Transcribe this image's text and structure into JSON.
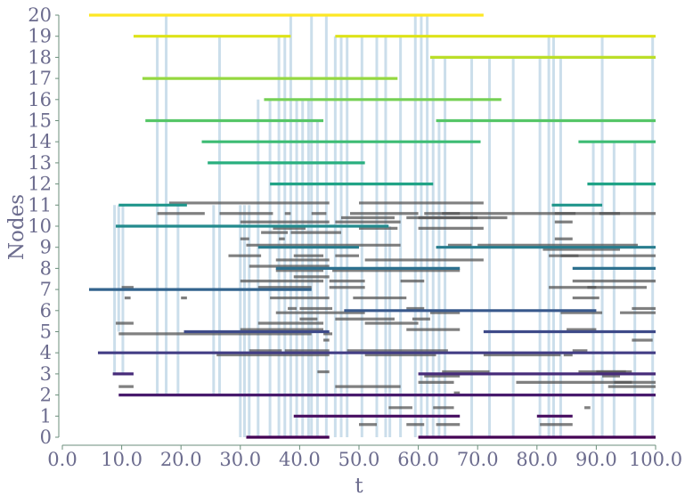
{
  "chart_data": {
    "type": "timeline",
    "xlabel": "t",
    "ylabel": "Nodes",
    "xlim": [
      0,
      100
    ],
    "ylim": [
      0,
      20
    ],
    "x_ticks": [
      "0.0",
      "10.0",
      "20.0",
      "30.0",
      "40.0",
      "50.0",
      "60.0",
      "70.0",
      "80.0",
      "90.0",
      "100.0"
    ],
    "y_ticks": [
      "0",
      "1",
      "2",
      "3",
      "4",
      "5",
      "6",
      "7",
      "8",
      "9",
      "10",
      "11",
      "12",
      "13",
      "14",
      "15",
      "16",
      "17",
      "18",
      "19",
      "20"
    ],
    "colors": {
      "node_colormap": "viridis",
      "node_colors": [
        "#440154",
        "#470e61",
        "#481b6d",
        "#472c7a",
        "#433e85",
        "#3e4a89",
        "#38588c",
        "#33638d",
        "#2d708e",
        "#287d8e",
        "#238a8d",
        "#1f968b",
        "#20a386",
        "#29af7f",
        "#3dbc74",
        "#56c667",
        "#75d054",
        "#95d840",
        "#bade28",
        "#dde318",
        "#fde725"
      ],
      "link_color": "#555555",
      "event_color": "#a9c8de",
      "axis_color": "#6b8e7b",
      "text_color": "#6c6c8e"
    },
    "node_presence": [
      {
        "node": 0,
        "intervals": [
          [
            31,
            45
          ],
          [
            60,
            100
          ]
        ]
      },
      {
        "node": 1,
        "intervals": [
          [
            39,
            44
          ],
          [
            44,
            67
          ],
          [
            80,
            86
          ]
        ]
      },
      {
        "node": 2,
        "intervals": [
          [
            9.5,
            100
          ]
        ]
      },
      {
        "node": 3,
        "intervals": [
          [
            8.5,
            12
          ],
          [
            60,
            100
          ]
        ]
      },
      {
        "node": 4,
        "intervals": [
          [
            6,
            100
          ]
        ]
      },
      {
        "node": 5,
        "intervals": [
          [
            20.5,
            45
          ],
          [
            71,
            100
          ]
        ]
      },
      {
        "node": 6,
        "intervals": [
          [
            47.5,
            90
          ]
        ]
      },
      {
        "node": 7,
        "intervals": [
          [
            4.5,
            42
          ]
        ]
      },
      {
        "node": 8,
        "intervals": [
          [
            36,
            67
          ],
          [
            86,
            100
          ]
        ]
      },
      {
        "node": 9,
        "intervals": [
          [
            33,
            50
          ],
          [
            63,
            100
          ]
        ]
      },
      {
        "node": 10,
        "intervals": [
          [
            9,
            55
          ]
        ]
      },
      {
        "node": 11,
        "intervals": [
          [
            9.5,
            21
          ],
          [
            82.5,
            91
          ]
        ]
      },
      {
        "node": 12,
        "intervals": [
          [
            35,
            62.5
          ],
          [
            88.5,
            100
          ]
        ]
      },
      {
        "node": 13,
        "intervals": [
          [
            24.5,
            51
          ]
        ]
      },
      {
        "node": 14,
        "intervals": [
          [
            23.5,
            70.5
          ],
          [
            87,
            100
          ]
        ]
      },
      {
        "node": 15,
        "intervals": [
          [
            14,
            44
          ],
          [
            63,
            100
          ]
        ]
      },
      {
        "node": 16,
        "intervals": [
          [
            34,
            74
          ]
        ]
      },
      {
        "node": 17,
        "intervals": [
          [
            13.5,
            56.5
          ]
        ]
      },
      {
        "node": 18,
        "intervals": [
          [
            62,
            100
          ]
        ]
      },
      {
        "node": 19,
        "intervals": [
          [
            12,
            38.5
          ],
          [
            46,
            100
          ]
        ]
      },
      {
        "node": 20,
        "intervals": [
          [
            4.5,
            71
          ]
        ]
      }
    ],
    "links": [
      {
        "y": 11.1,
        "x": [
          18,
          45
        ]
      },
      {
        "y": 11.1,
        "x": [
          50,
          71
        ]
      },
      {
        "y": 10.6,
        "x": [
          16,
          24
        ]
      },
      {
        "y": 10.6,
        "x": [
          26.5,
          35.5
        ]
      },
      {
        "y": 10.6,
        "x": [
          37.5,
          38.5
        ]
      },
      {
        "y": 10.6,
        "x": [
          42,
          44.5
        ]
      },
      {
        "y": 10.6,
        "x": [
          48.5,
          60
        ]
      },
      {
        "y": 10.6,
        "x": [
          61,
          67
        ]
      },
      {
        "y": 10.6,
        "x": [
          64,
          100
        ]
      },
      {
        "y": 10.6,
        "x": [
          83,
          86.5
        ]
      },
      {
        "y": 10.6,
        "x": [
          90.5,
          94
        ]
      },
      {
        "y": 10.4,
        "x": [
          47,
          56
        ]
      },
      {
        "y": 10.4,
        "x": [
          58,
          70
        ]
      },
      {
        "y": 10.4,
        "x": [
          60,
          75
        ]
      },
      {
        "y": 10.2,
        "x": [
          30,
          45
        ]
      },
      {
        "y": 10.2,
        "x": [
          46,
          57
        ]
      },
      {
        "y": 10.2,
        "x": [
          83,
          86
        ]
      },
      {
        "y": 9.9,
        "x": [
          35.5,
          41
        ]
      },
      {
        "y": 9.9,
        "x": [
          50,
          56.5
        ]
      },
      {
        "y": 9.9,
        "x": [
          60,
          71
        ]
      },
      {
        "y": 9.7,
        "x": [
          33.5,
          38
        ]
      },
      {
        "y": 9.7,
        "x": [
          38.5,
          47
        ]
      },
      {
        "y": 9.4,
        "x": [
          30,
          31.5
        ]
      },
      {
        "y": 9.4,
        "x": [
          36.5,
          37.5
        ]
      },
      {
        "y": 9.4,
        "x": [
          83,
          86
        ]
      },
      {
        "y": 9.1,
        "x": [
          31,
          57
        ]
      },
      {
        "y": 9.1,
        "x": [
          65,
          69
        ]
      },
      {
        "y": 9.1,
        "x": [
          70,
          97
        ]
      },
      {
        "y": 8.9,
        "x": [
          81,
          94
        ]
      },
      {
        "y": 8.6,
        "x": [
          28,
          33.5
        ]
      },
      {
        "y": 8.6,
        "x": [
          39,
          44
        ]
      },
      {
        "y": 8.6,
        "x": [
          46,
          50
        ]
      },
      {
        "y": 8.6,
        "x": [
          82,
          87
        ]
      },
      {
        "y": 8.6,
        "x": [
          84,
          100
        ]
      },
      {
        "y": 8.4,
        "x": [
          36,
          45
        ]
      },
      {
        "y": 8.4,
        "x": [
          51,
          71
        ]
      },
      {
        "y": 8.1,
        "x": [
          31.5,
          45
        ]
      },
      {
        "y": 7.9,
        "x": [
          36,
          44
        ]
      },
      {
        "y": 7.9,
        "x": [
          45.5,
          67
        ]
      },
      {
        "y": 7.6,
        "x": [
          39,
          45
        ]
      },
      {
        "y": 7.4,
        "x": [
          30,
          44
        ]
      },
      {
        "y": 7.4,
        "x": [
          45,
          51
        ]
      },
      {
        "y": 7.4,
        "x": [
          57,
          61
        ]
      },
      {
        "y": 7.4,
        "x": [
          86,
          100
        ]
      },
      {
        "y": 7.1,
        "x": [
          10,
          12
        ]
      },
      {
        "y": 7.1,
        "x": [
          33,
          42
        ]
      },
      {
        "y": 7.1,
        "x": [
          45,
          51
        ]
      },
      {
        "y": 7.1,
        "x": [
          82,
          98.5
        ]
      },
      {
        "y": 7.1,
        "x": [
          88.5,
          90
        ]
      },
      {
        "y": 6.6,
        "x": [
          10.5,
          11.5
        ]
      },
      {
        "y": 6.6,
        "x": [
          20,
          21
        ]
      },
      {
        "y": 6.6,
        "x": [
          35,
          45
        ]
      },
      {
        "y": 6.6,
        "x": [
          49,
          58
        ]
      },
      {
        "y": 6.6,
        "x": [
          86,
          90.5
        ]
      },
      {
        "y": 6.1,
        "x": [
          38,
          39.5
        ]
      },
      {
        "y": 6.1,
        "x": [
          40,
          45.5
        ]
      },
      {
        "y": 6.1,
        "x": [
          58,
          61
        ]
      },
      {
        "y": 6.1,
        "x": [
          96,
          100
        ]
      },
      {
        "y": 5.9,
        "x": [
          36,
          51
        ]
      },
      {
        "y": 5.9,
        "x": [
          62,
          67
        ]
      },
      {
        "y": 5.9,
        "x": [
          84,
          91
        ]
      },
      {
        "y": 5.9,
        "x": [
          94,
          100
        ]
      },
      {
        "y": 5.6,
        "x": [
          40,
          43
        ]
      },
      {
        "y": 5.6,
        "x": [
          46,
          56
        ]
      },
      {
        "y": 5.6,
        "x": [
          59,
          62
        ]
      },
      {
        "y": 5.4,
        "x": [
          9,
          12
        ]
      },
      {
        "y": 5.4,
        "x": [
          33,
          44
        ]
      },
      {
        "y": 5.4,
        "x": [
          51,
          60
        ]
      },
      {
        "y": 5.1,
        "x": [
          30,
          44
        ]
      },
      {
        "y": 5.1,
        "x": [
          58,
          67
        ]
      },
      {
        "y": 5.1,
        "x": [
          85,
          90
        ]
      },
      {
        "y": 4.9,
        "x": [
          9.5,
          42
        ]
      },
      {
        "y": 4.9,
        "x": [
          44,
          45.5
        ]
      },
      {
        "y": 4.6,
        "x": [
          44,
          45
        ]
      },
      {
        "y": 4.6,
        "x": [
          96,
          99.5
        ]
      },
      {
        "y": 4.1,
        "x": [
          31.5,
          37
        ]
      },
      {
        "y": 4.1,
        "x": [
          37.5,
          45
        ]
      },
      {
        "y": 4.1,
        "x": [
          48,
          65
        ]
      },
      {
        "y": 4.1,
        "x": [
          86,
          88.5
        ]
      },
      {
        "y": 3.9,
        "x": [
          26,
          45
        ]
      },
      {
        "y": 3.9,
        "x": [
          51,
          63
        ]
      },
      {
        "y": 3.9,
        "x": [
          71,
          84
        ]
      },
      {
        "y": 3.9,
        "x": [
          84.5,
          86
        ]
      },
      {
        "y": 3.1,
        "x": [
          43,
          45
        ]
      },
      {
        "y": 3.1,
        "x": [
          64,
          72
        ]
      },
      {
        "y": 3.1,
        "x": [
          87,
          95
        ]
      },
      {
        "y": 3.1,
        "x": [
          90,
          96
        ]
      },
      {
        "y": 2.9,
        "x": [
          61,
          67
        ]
      },
      {
        "y": 2.9,
        "x": [
          91,
          94
        ]
      },
      {
        "y": 2.6,
        "x": [
          60,
          66
        ]
      },
      {
        "y": 2.6,
        "x": [
          76.5,
          96
        ]
      },
      {
        "y": 2.6,
        "x": [
          93,
          100
        ]
      },
      {
        "y": 2.4,
        "x": [
          9.5,
          12
        ]
      },
      {
        "y": 2.4,
        "x": [
          46,
          57
        ]
      },
      {
        "y": 2.4,
        "x": [
          92,
          100
        ]
      },
      {
        "y": 2.1,
        "x": [
          66,
          67
        ]
      },
      {
        "y": 1.4,
        "x": [
          55,
          59
        ]
      },
      {
        "y": 1.4,
        "x": [
          62.5,
          66
        ]
      },
      {
        "y": 1.4,
        "x": [
          88,
          89
        ]
      },
      {
        "y": 0.6,
        "x": [
          50,
          53
        ]
      },
      {
        "y": 0.6,
        "x": [
          58,
          61
        ]
      },
      {
        "y": 0.6,
        "x": [
          63,
          67
        ]
      },
      {
        "y": 0.6,
        "x": [
          80.5,
          86
        ]
      }
    ],
    "events": [
      {
        "t": 8.8,
        "y": [
          3,
          11
        ]
      },
      {
        "t": 9.5,
        "y": [
          5,
          11
        ]
      },
      {
        "t": 10.2,
        "y": [
          3,
          11
        ]
      },
      {
        "t": 16,
        "y": [
          2,
          19
        ]
      },
      {
        "t": 17.5,
        "y": [
          2,
          20
        ]
      },
      {
        "t": 19.5,
        "y": [
          2,
          11
        ]
      },
      {
        "t": 25.5,
        "y": [
          2,
          11
        ]
      },
      {
        "t": 26.5,
        "y": [
          2,
          19
        ]
      },
      {
        "t": 30,
        "y": [
          0,
          11
        ]
      },
      {
        "t": 30.7,
        "y": [
          0,
          11
        ]
      },
      {
        "t": 31.5,
        "y": [
          0,
          11
        ]
      },
      {
        "t": 33,
        "y": [
          0,
          16
        ]
      },
      {
        "t": 35,
        "y": [
          0,
          16
        ]
      },
      {
        "t": 36.5,
        "y": [
          0,
          19
        ]
      },
      {
        "t": 37.5,
        "y": [
          0,
          19
        ]
      },
      {
        "t": 38.5,
        "y": [
          0,
          20
        ]
      },
      {
        "t": 39.5,
        "y": [
          0,
          16
        ]
      },
      {
        "t": 40.5,
        "y": [
          0,
          16
        ]
      },
      {
        "t": 41.5,
        "y": [
          0,
          16
        ]
      },
      {
        "t": 42,
        "y": [
          0,
          20
        ]
      },
      {
        "t": 43,
        "y": [
          0,
          15
        ]
      },
      {
        "t": 44.5,
        "y": [
          0,
          20
        ]
      },
      {
        "t": 46,
        "y": [
          0,
          19
        ]
      },
      {
        "t": 47,
        "y": [
          0,
          19
        ]
      },
      {
        "t": 48,
        "y": [
          0,
          19
        ]
      },
      {
        "t": 50.5,
        "y": [
          0,
          19
        ]
      },
      {
        "t": 53,
        "y": [
          0,
          19
        ]
      },
      {
        "t": 54.5,
        "y": [
          0,
          19
        ]
      },
      {
        "t": 55.2,
        "y": [
          0,
          10
        ]
      },
      {
        "t": 57,
        "y": [
          0,
          19
        ]
      },
      {
        "t": 59.5,
        "y": [
          0,
          20
        ]
      },
      {
        "t": 60.5,
        "y": [
          0,
          20
        ]
      },
      {
        "t": 61.5,
        "y": [
          0,
          20
        ]
      },
      {
        "t": 62.5,
        "y": [
          0,
          18
        ]
      },
      {
        "t": 63.5,
        "y": [
          0,
          15
        ]
      },
      {
        "t": 64.5,
        "y": [
          0,
          18
        ]
      },
      {
        "t": 69,
        "y": [
          0,
          18
        ]
      },
      {
        "t": 72,
        "y": [
          0,
          18
        ]
      },
      {
        "t": 76,
        "y": [
          0,
          18
        ]
      },
      {
        "t": 80.5,
        "y": [
          0,
          18
        ]
      },
      {
        "t": 82,
        "y": [
          0,
          19
        ]
      },
      {
        "t": 82.8,
        "y": [
          0,
          19
        ]
      },
      {
        "t": 84,
        "y": [
          0,
          18
        ]
      },
      {
        "t": 89.5,
        "y": [
          0,
          14
        ]
      },
      {
        "t": 91,
        "y": [
          0,
          19
        ]
      },
      {
        "t": 93,
        "y": [
          0,
          14
        ]
      },
      {
        "t": 96.5,
        "y": [
          0,
          14
        ]
      },
      {
        "t": 99.5,
        "y": [
          0,
          19
        ]
      }
    ],
    "grid": false
  }
}
